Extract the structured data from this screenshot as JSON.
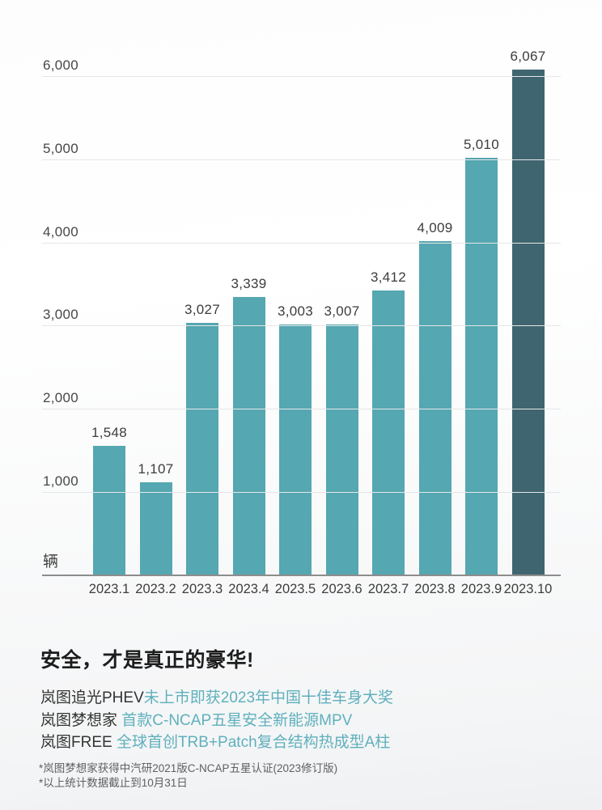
{
  "chart_data": {
    "type": "bar",
    "title": "",
    "unit_label": "辆",
    "categories": [
      "2023.1",
      "2023.2",
      "2023.3",
      "2023.4",
      "2023.5",
      "2023.6",
      "2023.7",
      "2023.8",
      "2023.9",
      "2023.10"
    ],
    "values": [
      1548,
      1107,
      3027,
      3339,
      3003,
      3007,
      3412,
      4009,
      5010,
      6067
    ],
    "value_labels": [
      "1,548",
      "1,107",
      "3,027",
      "3,339",
      "3,003",
      "3,007",
      "3,412",
      "4,009",
      "5,010",
      "6,067"
    ],
    "yticks": [
      {
        "value": 1000,
        "label": "1,000"
      },
      {
        "value": 2000,
        "label": "2,000"
      },
      {
        "value": 3000,
        "label": "3,000"
      },
      {
        "value": 4000,
        "label": "4,000"
      },
      {
        "value": 5000,
        "label": "5,000"
      },
      {
        "value": 6000,
        "label": "6,000"
      }
    ],
    "ylim": [
      0,
      6320
    ],
    "grid": true,
    "legend": "none",
    "bar_color": "#55a7b1",
    "highlight_bar_color": "#3f6570",
    "highlight_index": 9
  },
  "caption": {
    "title": "安全，才是真正的豪华!",
    "highlight_color": "#5fb0bd",
    "lines": [
      {
        "prefix": "岚图追光PHEV",
        "highlight": "未上市即获2023年中国十佳车身大奖"
      },
      {
        "prefix": "岚图梦想家 ",
        "highlight": "首款C-NCAP五星安全新能源MPV"
      },
      {
        "prefix": "岚图FREE ",
        "highlight": "全球首创TRB+Patch复合结构热成型A柱"
      }
    ]
  },
  "footnotes": [
    "*岚图梦想家获得中汽研2021版C-NCAP五星认证(2023修订版)",
    "*以上统计数据截止到10月31日"
  ]
}
